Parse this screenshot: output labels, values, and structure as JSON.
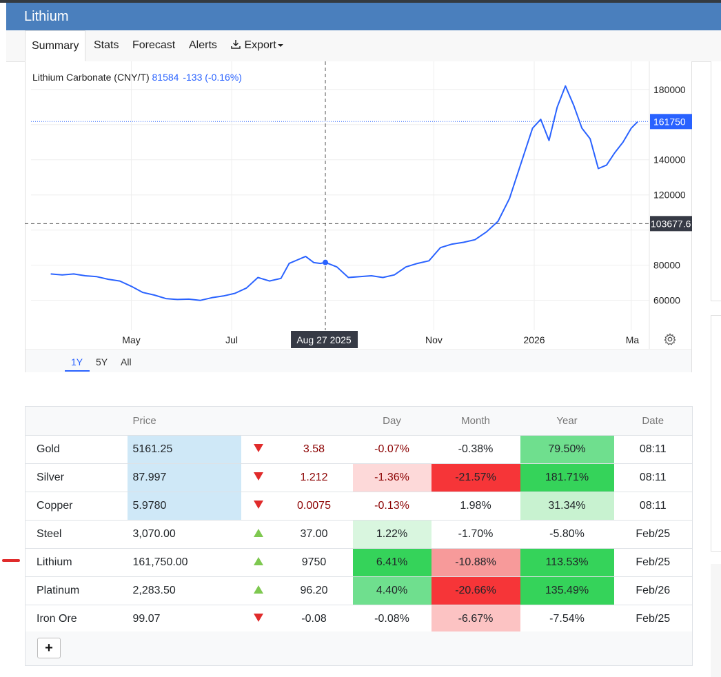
{
  "window": {
    "title": "Lithium"
  },
  "tabs": [
    {
      "label": "Summary",
      "active": true
    },
    {
      "label": "Stats"
    },
    {
      "label": "Forecast"
    },
    {
      "label": "Alerts"
    },
    {
      "label": "Export",
      "icon": "download-icon"
    }
  ],
  "chart": {
    "legend_name": "Lithium Carbonate (CNY/T)",
    "legend_value": "81584",
    "legend_change": "-133 (-0.16%)",
    "crosshair_date": "Aug 27 2025",
    "crosshair_price": "103677.6",
    "last_price_label": "161750",
    "y_ticks": [
      "180000",
      "140000",
      "120000",
      "80000",
      "60000"
    ],
    "x_ticks": [
      "May",
      "Jul",
      "Nov",
      "2026",
      "Ma"
    ],
    "ranges": [
      {
        "label": "1Y",
        "active": true
      },
      {
        "label": "5Y"
      },
      {
        "label": "All"
      }
    ],
    "colors": {
      "line": "#2962ff",
      "last_price_bg": "#2962ff",
      "crosshair_bg": "#363a45"
    }
  },
  "chart_data": {
    "type": "line",
    "title": "Lithium Carbonate (CNY/T)",
    "xlabel": "",
    "ylabel": "",
    "ylim": [
      43000,
      196000
    ],
    "grid": true,
    "x_ticks": [
      "May",
      "Jul",
      "Nov",
      "2026",
      "Ma"
    ],
    "series": [
      {
        "name": "Lithium Carbonate (CNY/T)",
        "x": [
          "2025-03-13",
          "2025-03-20",
          "2025-03-27",
          "2025-04-03",
          "2025-04-10",
          "2025-04-17",
          "2025-04-24",
          "2025-05-01",
          "2025-05-08",
          "2025-05-15",
          "2025-05-22",
          "2025-05-29",
          "2025-06-05",
          "2025-06-12",
          "2025-06-19",
          "2025-06-26",
          "2025-07-03",
          "2025-07-10",
          "2025-07-17",
          "2025-07-24",
          "2025-07-31",
          "2025-08-05",
          "2025-08-10",
          "2025-08-15",
          "2025-08-20",
          "2025-08-24",
          "2025-08-27",
          "2025-09-03",
          "2025-09-10",
          "2025-09-17",
          "2025-09-24",
          "2025-10-01",
          "2025-10-08",
          "2025-10-15",
          "2025-10-22",
          "2025-10-29",
          "2025-11-05",
          "2025-11-12",
          "2025-11-19",
          "2025-11-26",
          "2025-12-03",
          "2025-12-10",
          "2025-12-17",
          "2025-12-24",
          "2025-12-31",
          "2026-01-05",
          "2026-01-10",
          "2026-01-15",
          "2026-01-20",
          "2026-01-25",
          "2026-01-30",
          "2026-02-04",
          "2026-02-09",
          "2026-02-14",
          "2026-02-19",
          "2026-02-24",
          "2026-03-01",
          "2026-03-05"
        ],
        "values": [
          75000,
          74500,
          75000,
          74000,
          73500,
          72000,
          71000,
          68000,
          64500,
          63000,
          61000,
          60500,
          60700,
          60000,
          61500,
          62500,
          64000,
          67000,
          73000,
          71000,
          72500,
          81000,
          83000,
          85000,
          81500,
          81000,
          81584,
          79000,
          73000,
          73500,
          74000,
          73000,
          74500,
          79000,
          81000,
          82500,
          90000,
          92000,
          93000,
          94500,
          99000,
          105000,
          118000,
          138000,
          158000,
          163000,
          151000,
          170000,
          182000,
          171000,
          158000,
          152000,
          135000,
          137000,
          144000,
          150000,
          158000,
          161750
        ]
      }
    ]
  },
  "table": {
    "headers": [
      "",
      "Price",
      "",
      "",
      "Day",
      "Month",
      "Year",
      "Date"
    ],
    "rows": [
      {
        "name": "Gold",
        "price": "5161.25",
        "dir": "down",
        "change": "3.58",
        "day": "-0.07%",
        "month": "-0.38%",
        "year": "79.50%",
        "date": "08:11"
      },
      {
        "name": "Silver",
        "price": "87.997",
        "dir": "down",
        "change": "1.212",
        "day": "-1.36%",
        "month": "-21.57%",
        "year": "181.71%",
        "date": "08:11"
      },
      {
        "name": "Copper",
        "price": "5.9780",
        "dir": "down",
        "change": "0.0075",
        "day": "-0.13%",
        "month": "1.98%",
        "year": "31.34%",
        "date": "08:11"
      },
      {
        "name": "Steel",
        "price": "3,070.00",
        "dir": "up",
        "change": "37.00",
        "day": "1.22%",
        "month": "-1.70%",
        "year": "-5.80%",
        "date": "Feb/25"
      },
      {
        "name": "Lithium",
        "price": "161,750.00",
        "dir": "up",
        "change": "9750",
        "day": "6.41%",
        "month": "-10.88%",
        "year": "113.53%",
        "date": "Feb/25"
      },
      {
        "name": "Platinum",
        "price": "2,283.50",
        "dir": "up",
        "change": "96.20",
        "day": "4.40%",
        "month": "-20.66%",
        "year": "135.49%",
        "date": "Feb/26"
      },
      {
        "name": "Iron Ore",
        "price": "99.07",
        "dir": "down",
        "change": "-0.08",
        "day": "-0.08%",
        "month": "-6.67%",
        "year": "-7.54%",
        "date": "Feb/25"
      }
    ],
    "add_label": "+",
    "cell_colors": {
      "strong_green": "#35d35a",
      "mid_green": "#6fdf8e",
      "light_green": "#c8f2d0",
      "pale_green": "#d9f6df",
      "strong_red": "#f63538",
      "mid_red": "#f79a9a",
      "light_red": "#fcc3c3",
      "pale_red": "#fdd9d9",
      "price_highlight": "#cfe8f7"
    }
  }
}
